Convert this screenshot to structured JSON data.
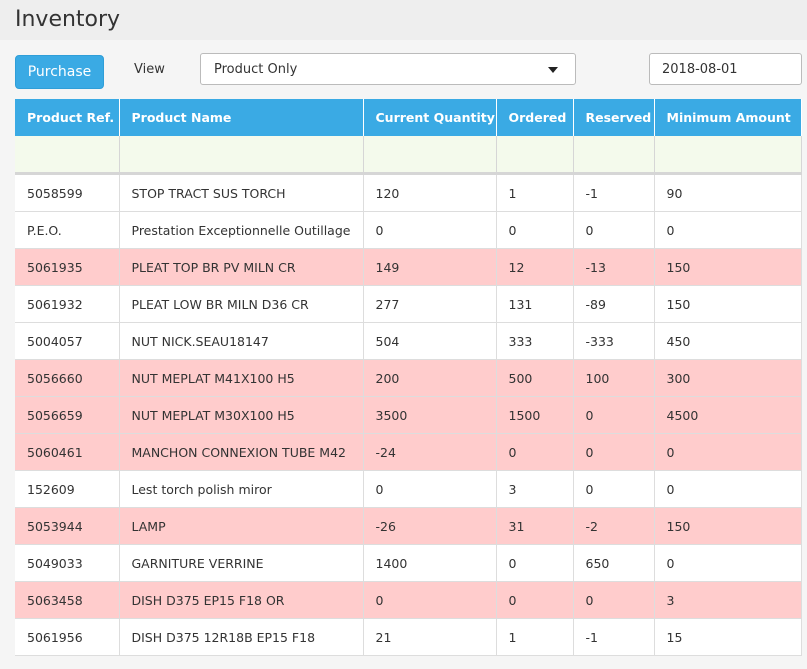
{
  "page": {
    "title": "Inventory"
  },
  "toolbar": {
    "purchase_label": "Purchase",
    "view_label": "View",
    "view_selected": "Product Only",
    "date_value": "2018-08-01"
  },
  "table": {
    "columns": [
      "Product Ref.",
      "Product Name",
      "Current Quantity",
      "Ordered",
      "Reserved",
      "Minimum Amount"
    ],
    "rows": [
      {
        "ref": "5058599",
        "name": "STOP TRACT SUS TORCH",
        "qty": "120",
        "ordered": "1",
        "reserved": "-1",
        "min": "90",
        "alert": false
      },
      {
        "ref": "P.E.O.",
        "name": "Prestation Exceptionnelle Outillage",
        "qty": "0",
        "ordered": "0",
        "reserved": "0",
        "min": "0",
        "alert": false
      },
      {
        "ref": "5061935",
        "name": "PLEAT TOP BR PV MILN CR",
        "qty": "149",
        "ordered": "12",
        "reserved": "-13",
        "min": "150",
        "alert": true
      },
      {
        "ref": "5061932",
        "name": "PLEAT LOW BR MILN D36 CR",
        "qty": "277",
        "ordered": "131",
        "reserved": "-89",
        "min": "150",
        "alert": false
      },
      {
        "ref": "5004057",
        "name": "NUT NICK.SEAU18147",
        "qty": "504",
        "ordered": "333",
        "reserved": "-333",
        "min": "450",
        "alert": false
      },
      {
        "ref": "5056660",
        "name": "NUT MEPLAT M41X100 H5",
        "qty": "200",
        "ordered": "500",
        "reserved": "100",
        "min": "300",
        "alert": true
      },
      {
        "ref": "5056659",
        "name": "NUT MEPLAT M30X100 H5",
        "qty": "3500",
        "ordered": "1500",
        "reserved": "0",
        "min": "4500",
        "alert": true
      },
      {
        "ref": "5060461",
        "name": "MANCHON CONNEXION TUBE M42",
        "qty": "-24",
        "ordered": "0",
        "reserved": "0",
        "min": "0",
        "alert": true
      },
      {
        "ref": "152609",
        "name": "Lest torch polish miror",
        "qty": "0",
        "ordered": "3",
        "reserved": "0",
        "min": "0",
        "alert": false
      },
      {
        "ref": "5053944",
        "name": "LAMP",
        "qty": "-26",
        "ordered": "31",
        "reserved": "-2",
        "min": "150",
        "alert": true
      },
      {
        "ref": "5049033",
        "name": "GARNITURE VERRINE",
        "qty": "1400",
        "ordered": "0",
        "reserved": "650",
        "min": "0",
        "alert": false
      },
      {
        "ref": "5063458",
        "name": "DISH D375 EP15 F18 OR",
        "qty": "0",
        "ordered": "0",
        "reserved": "0",
        "min": "3",
        "alert": true
      },
      {
        "ref": "5061956",
        "name": "DISH D375 12R18B EP15 F18",
        "qty": "21",
        "ordered": "1",
        "reserved": "-1",
        "min": "15",
        "alert": false
      }
    ]
  },
  "colors": {
    "header": "#3aaae4",
    "alert_row": "#ffcccc",
    "filter_row": "#f4faec"
  },
  "icons": {
    "view_select": "chevron-down-icon"
  }
}
